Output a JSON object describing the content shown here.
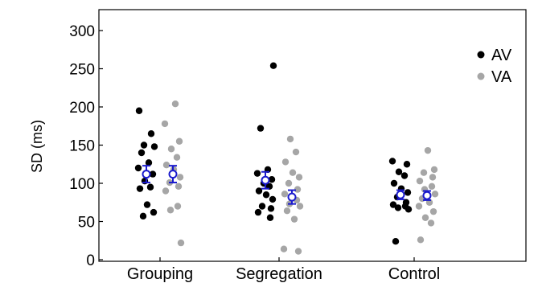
{
  "chart_data": {
    "type": "scatter",
    "ylabel": "SD (ms)",
    "ylim": [
      0,
      300
    ],
    "yticks": [
      "0",
      "50",
      "100",
      "150",
      "200",
      "250",
      "300"
    ],
    "categories": [
      "Grouping",
      "Segregation",
      "Control"
    ],
    "grid": false,
    "legend_position": "top-right",
    "series": [
      {
        "name": "AV",
        "color": "#000000",
        "points": [
          [
            [
              195,
              165,
              150,
              148,
              140,
              127,
              120,
              112,
              103,
              95,
              93,
              72,
              62,
              57
            ]
          ],
          [
            [
              254,
              172,
              118,
              113,
              105,
              100,
              96,
              90,
              85,
              79,
              70,
              67,
              62,
              55
            ]
          ],
          [
            [
              129,
              125,
              115,
              110,
              100,
              93,
              88,
              82,
              75,
              72,
              70,
              68,
              66,
              24
            ]
          ]
        ],
        "mean": [
          112,
          104,
          85
        ],
        "error": [
          11,
          11,
          6
        ]
      },
      {
        "name": "VA",
        "color": "#a6a6a6",
        "points": [
          [
            [
              204,
              178,
              155,
              145,
              134,
              124,
              118,
              108,
              101,
              96,
              90,
              70,
              65,
              22
            ]
          ],
          [
            [
              158,
              141,
              128,
              114,
              108,
              100,
              92,
              86,
              78,
              73,
              70,
              64,
              53,
              14,
              11
            ]
          ],
          [
            [
              143,
              118,
              114,
              108,
              103,
              96,
              92,
              86,
              80,
              75,
              70,
              63,
              55,
              48,
              26
            ]
          ]
        ],
        "mean": [
          112,
          82,
          84
        ],
        "error": [
          11,
          9,
          6
        ]
      }
    ],
    "mean_marker_color": "#1a1acd"
  }
}
